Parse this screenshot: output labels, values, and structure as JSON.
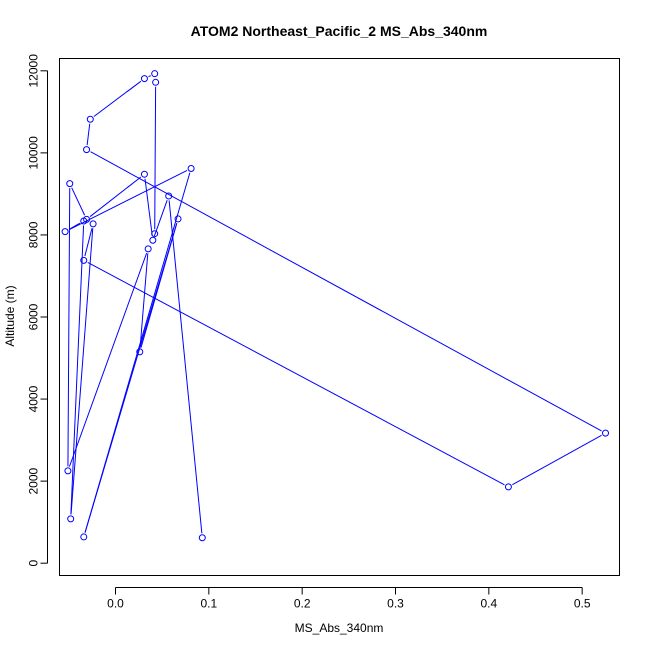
{
  "chart_data": {
    "type": "line",
    "title": "ATOM2 Northeast_Pacific_2 MS_Abs_340nm",
    "xlabel": "MS_Abs_340nm",
    "ylabel": "Altitude (m)",
    "xlim": [
      -0.06,
      0.54
    ],
    "ylim": [
      -300,
      12300
    ],
    "x_ticks": [
      0.0,
      0.1,
      0.2,
      0.3,
      0.4,
      0.5
    ],
    "x_tick_labels": [
      "0.0",
      "0.1",
      "0.2",
      "0.3",
      "0.4",
      "0.5"
    ],
    "y_ticks": [
      0,
      2000,
      4000,
      6000,
      8000,
      10000,
      12000
    ],
    "y_tick_labels": [
      "0",
      "2000",
      "4000",
      "6000",
      "8000",
      "10000",
      "12000"
    ],
    "grid": false,
    "series": [
      {
        "color": "#0000ff",
        "marker": "open-circle",
        "points": [
          {
            "x": 0.093,
            "y": 620
          },
          {
            "x": 0.057,
            "y": 8950
          },
          {
            "x": 0.04,
            "y": 7870
          },
          {
            "x": 0.031,
            "y": 9480
          },
          {
            "x": -0.031,
            "y": 8380
          },
          {
            "x": -0.049,
            "y": 9250
          },
          {
            "x": -0.051,
            "y": 2250
          },
          {
            "x": 0.035,
            "y": 7660
          },
          {
            "x": 0.026,
            "y": 5150
          },
          {
            "x": 0.067,
            "y": 8390
          },
          {
            "x": -0.034,
            "y": 640
          },
          {
            "x": 0.081,
            "y": 9620
          },
          {
            "x": -0.054,
            "y": 8080
          },
          {
            "x": -0.034,
            "y": 8340
          },
          {
            "x": -0.048,
            "y": 1080
          },
          {
            "x": -0.024,
            "y": 8270
          },
          {
            "x": -0.034,
            "y": 7380
          },
          {
            "x": 0.421,
            "y": 1860
          },
          {
            "x": 0.525,
            "y": 3170
          },
          {
            "x": -0.031,
            "y": 10080
          },
          {
            "x": -0.027,
            "y": 10820
          },
          {
            "x": 0.031,
            "y": 11810
          },
          {
            "x": 0.042,
            "y": 11930
          },
          {
            "x": 0.043,
            "y": 11720
          },
          {
            "x": 0.042,
            "y": 8030
          }
        ]
      }
    ]
  }
}
